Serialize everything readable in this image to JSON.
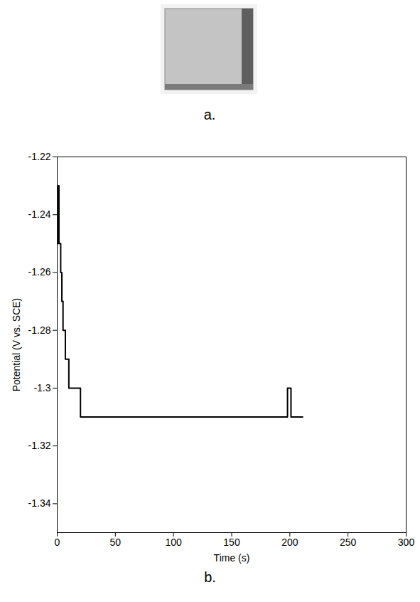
{
  "image_panel": {
    "label": "a."
  },
  "chart_data": {
    "type": "line",
    "panel_label": "b.",
    "x_label": "Time (s)",
    "y_label": "Potential (V vs. SCE)",
    "x": [
      0,
      1,
      1.5,
      2,
      3,
      4,
      5,
      7,
      10,
      20,
      198,
      199,
      201,
      211
    ],
    "series": [
      {
        "name": "Potential",
        "color": "#000000",
        "values": [
          -1.25,
          -1.23,
          -1.25,
          -1.25,
          -1.26,
          -1.27,
          -1.28,
          -1.29,
          -1.3,
          -1.31,
          -1.3,
          -1.3,
          -1.31,
          -1.31
        ]
      }
    ],
    "xlim": [
      0,
      300
    ],
    "xticks": [
      0,
      50,
      100,
      150,
      200,
      250,
      300
    ],
    "ylim": [
      -1.35,
      -1.22
    ],
    "yticks": [
      -1.22,
      -1.24,
      -1.26,
      -1.28,
      -1.3,
      -1.32,
      -1.34
    ],
    "grid": false
  }
}
